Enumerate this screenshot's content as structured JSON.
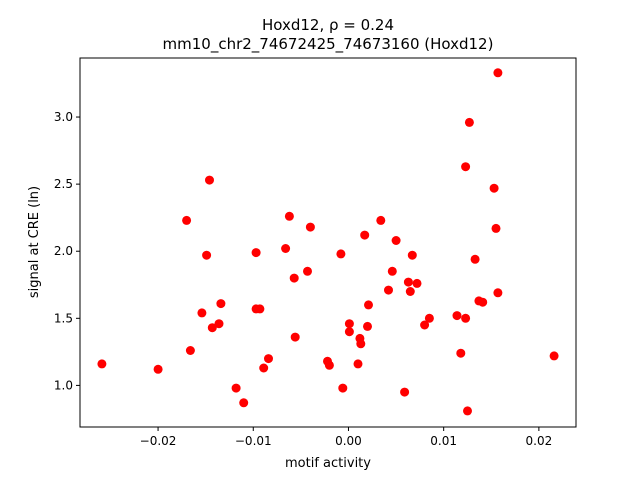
{
  "chart_data": {
    "type": "scatter",
    "title_line1": "Hoxd12, ρ = 0.24",
    "title_line2": "mm10_chr2_74672425_74673160 (Hoxd12)",
    "xlabel": "motif activity",
    "ylabel": "signal at CRE (ln)",
    "xlim": [
      -0.0282,
      0.0239
    ],
    "ylim": [
      0.69,
      3.44
    ],
    "xticks": [
      {
        "value": -0.02,
        "label": "−0.02"
      },
      {
        "value": -0.01,
        "label": "−0.01"
      },
      {
        "value": 0.0,
        "label": "0.00"
      },
      {
        "value": 0.01,
        "label": "0.01"
      },
      {
        "value": 0.02,
        "label": "0.02"
      }
    ],
    "yticks": [
      {
        "value": 1.0,
        "label": "1.0"
      },
      {
        "value": 1.5,
        "label": "1.5"
      },
      {
        "value": 2.0,
        "label": "2.0"
      },
      {
        "value": 2.5,
        "label": "2.5"
      },
      {
        "value": 3.0,
        "label": "3.0"
      }
    ],
    "grid": false,
    "marker_color": "#ff0000",
    "points": [
      {
        "x": -0.0259,
        "y": 1.16
      },
      {
        "x": -0.02,
        "y": 1.12
      },
      {
        "x": -0.017,
        "y": 2.23
      },
      {
        "x": -0.0166,
        "y": 1.26
      },
      {
        "x": -0.0154,
        "y": 1.54
      },
      {
        "x": -0.0149,
        "y": 1.97
      },
      {
        "x": -0.0146,
        "y": 2.53
      },
      {
        "x": -0.0143,
        "y": 1.43
      },
      {
        "x": -0.0136,
        "y": 1.46
      },
      {
        "x": -0.0134,
        "y": 1.61
      },
      {
        "x": -0.0118,
        "y": 0.98
      },
      {
        "x": -0.011,
        "y": 0.87
      },
      {
        "x": -0.0097,
        "y": 1.99
      },
      {
        "x": -0.0097,
        "y": 1.57
      },
      {
        "x": -0.0093,
        "y": 1.57
      },
      {
        "x": -0.0089,
        "y": 1.13
      },
      {
        "x": -0.0084,
        "y": 1.2
      },
      {
        "x": -0.0066,
        "y": 2.02
      },
      {
        "x": -0.0062,
        "y": 2.26
      },
      {
        "x": -0.0057,
        "y": 1.8
      },
      {
        "x": -0.0056,
        "y": 1.36
      },
      {
        "x": -0.0043,
        "y": 1.85
      },
      {
        "x": -0.004,
        "y": 2.18
      },
      {
        "x": -0.0022,
        "y": 1.18
      },
      {
        "x": -0.002,
        "y": 1.15
      },
      {
        "x": -0.0008,
        "y": 1.98
      },
      {
        "x": -0.0006,
        "y": 0.98
      },
      {
        "x": 0.0001,
        "y": 1.46
      },
      {
        "x": 0.0001,
        "y": 1.4
      },
      {
        "x": 0.001,
        "y": 1.16
      },
      {
        "x": 0.0012,
        "y": 1.35
      },
      {
        "x": 0.0013,
        "y": 1.31
      },
      {
        "x": 0.0017,
        "y": 2.12
      },
      {
        "x": 0.002,
        "y": 1.44
      },
      {
        "x": 0.0021,
        "y": 1.6
      },
      {
        "x": 0.0034,
        "y": 2.23
      },
      {
        "x": 0.0042,
        "y": 1.71
      },
      {
        "x": 0.0046,
        "y": 1.85
      },
      {
        "x": 0.005,
        "y": 2.08
      },
      {
        "x": 0.0059,
        "y": 0.95
      },
      {
        "x": 0.0063,
        "y": 1.77
      },
      {
        "x": 0.0065,
        "y": 1.7
      },
      {
        "x": 0.0067,
        "y": 1.97
      },
      {
        "x": 0.0072,
        "y": 1.76
      },
      {
        "x": 0.008,
        "y": 1.45
      },
      {
        "x": 0.0085,
        "y": 1.5
      },
      {
        "x": 0.0114,
        "y": 1.52
      },
      {
        "x": 0.0118,
        "y": 1.24
      },
      {
        "x": 0.0123,
        "y": 2.63
      },
      {
        "x": 0.0123,
        "y": 1.5
      },
      {
        "x": 0.0125,
        "y": 0.81
      },
      {
        "x": 0.0127,
        "y": 2.96
      },
      {
        "x": 0.0133,
        "y": 1.94
      },
      {
        "x": 0.0137,
        "y": 1.63
      },
      {
        "x": 0.0141,
        "y": 1.62
      },
      {
        "x": 0.0153,
        "y": 2.47
      },
      {
        "x": 0.0155,
        "y": 2.17
      },
      {
        "x": 0.0157,
        "y": 1.69
      },
      {
        "x": 0.0157,
        "y": 3.33
      },
      {
        "x": 0.0216,
        "y": 1.22
      }
    ]
  }
}
